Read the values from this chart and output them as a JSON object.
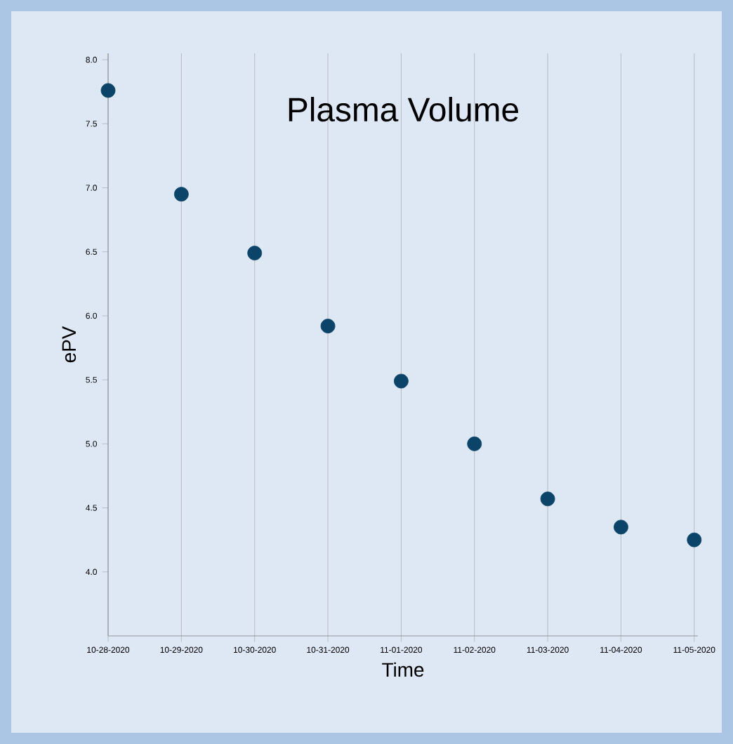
{
  "chart_data": {
    "type": "scatter",
    "title": "Plasma Volume",
    "xlabel": "Time",
    "ylabel": "ePV",
    "categories": [
      "10-28-2020",
      "10-29-2020",
      "10-30-2020",
      "10-31-2020",
      "11-01-2020",
      "11-02-2020",
      "11-03-2020",
      "11-04-2020",
      "11-05-2020"
    ],
    "series": [
      {
        "color": "#0b4468",
        "values": [
          7.76,
          6.95,
          6.49,
          5.92,
          5.49,
          5.0,
          4.57,
          4.35,
          4.25
        ]
      }
    ],
    "ylim": [
      3.5,
      8.05
    ],
    "yticks": [
      {
        "value": 4,
        "label": "4.0"
      },
      {
        "value": 4.5,
        "label": "4.5"
      },
      {
        "value": 5,
        "label": "5.0"
      },
      {
        "value": 5.5,
        "label": "5.5"
      },
      {
        "value": 6,
        "label": "6.0"
      },
      {
        "value": 6.5,
        "label": "6.5"
      },
      {
        "value": 7,
        "label": "7.0"
      },
      {
        "value": 7.5,
        "label": "7.5"
      },
      {
        "value": 8,
        "label": "8.0"
      }
    ],
    "grid": "x"
  }
}
